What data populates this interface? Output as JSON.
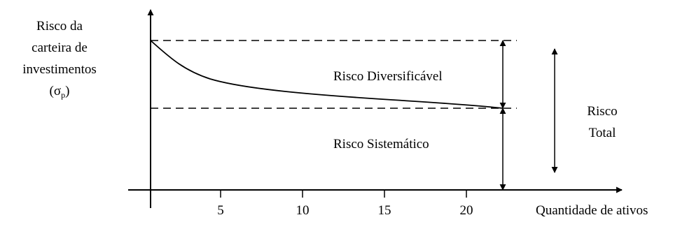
{
  "y_axis": {
    "label_lines": [
      "Risco da",
      "carteira de",
      "investimentos",
      "(σ"
    ],
    "label_subscript": "p",
    "label_close": ")"
  },
  "x_axis": {
    "label": "Quantidade de ativos",
    "ticks": [
      "5",
      "10",
      "15",
      "20"
    ]
  },
  "regions": {
    "diversifiable": "Risco Diversificável",
    "systematic": "Risco Sistemático",
    "total_line1": "Risco",
    "total_line2": "Total"
  }
}
